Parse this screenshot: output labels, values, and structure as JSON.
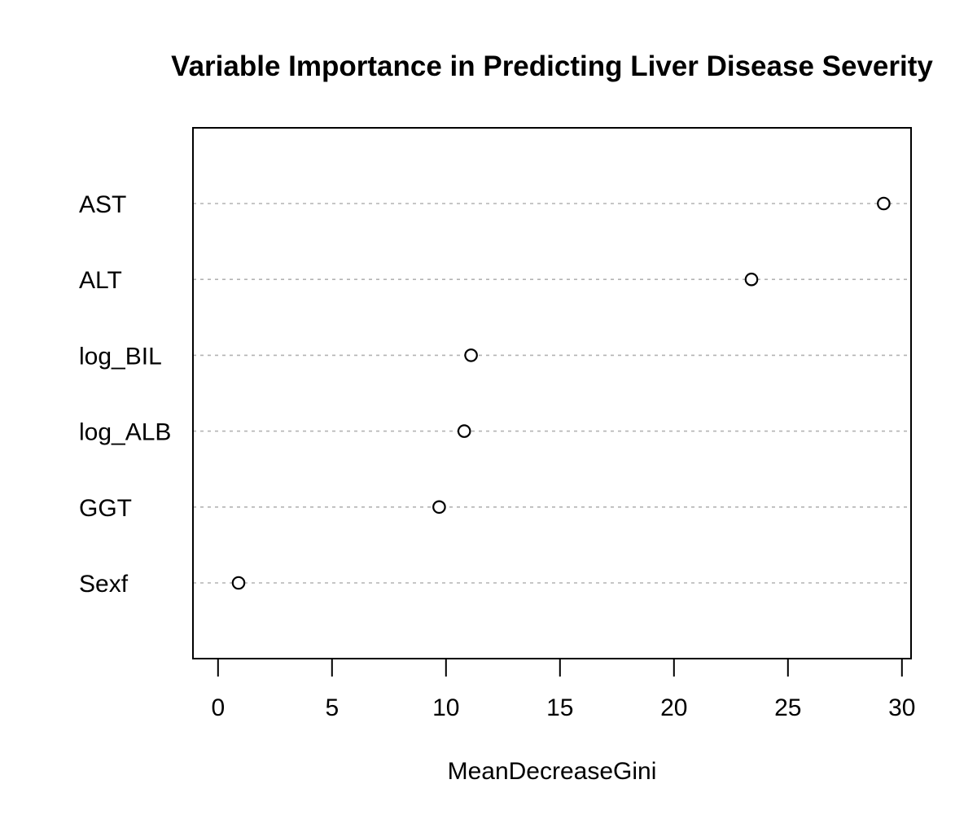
{
  "chart_data": {
    "type": "scatter",
    "title": "Variable Importance in Predicting Liver Disease Severity",
    "xlabel": "MeanDecreaseGini",
    "ylabel": "",
    "categories": [
      "AST",
      "ALT",
      "log_BIL",
      "log_ALB",
      "GGT",
      "Sexf"
    ],
    "values": [
      29.2,
      23.4,
      11.1,
      10.8,
      9.7,
      0.9
    ],
    "xlim": [
      -1.1,
      30.4
    ],
    "xticks": [
      0,
      5,
      10,
      15,
      20,
      25,
      30
    ],
    "grid": "dotted horizontal guide lines",
    "legend": "none",
    "marker": "open-circle",
    "colors": {
      "point_stroke": "#000000",
      "point_fill": "#ffffff",
      "guide": "#b3b3b3",
      "frame": "#000000"
    }
  }
}
